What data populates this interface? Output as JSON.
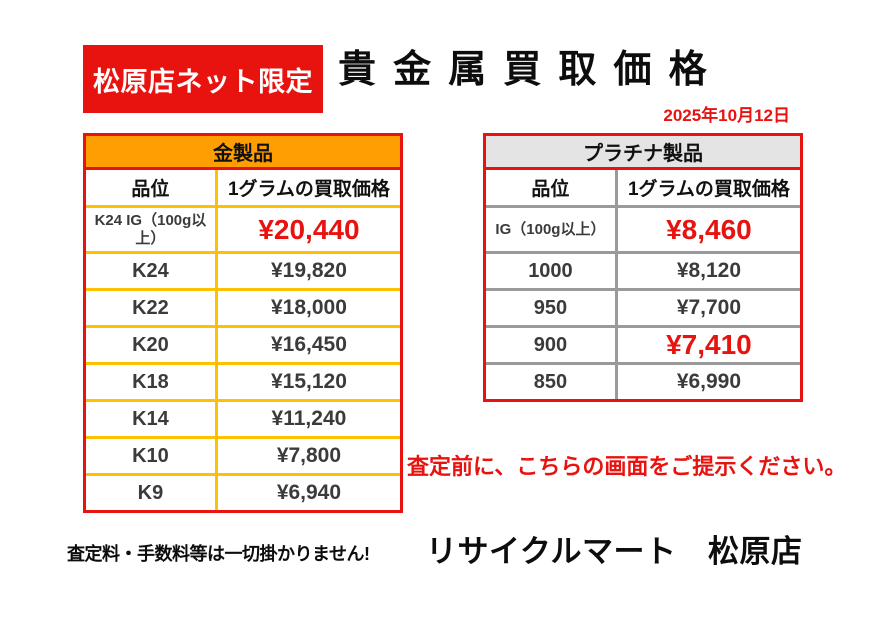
{
  "header": {
    "badge": "松原店ネット限定",
    "title": "貴金属買取価格",
    "date": "2025年10月12日"
  },
  "gold_table": {
    "title": "金製品",
    "columns": [
      "品位",
      "1グラムの買取価格"
    ],
    "rows": [
      {
        "grade": "K24 IG（100g以上）",
        "price": "¥20,440",
        "highlight": true
      },
      {
        "grade": "K24",
        "price": "¥19,820",
        "highlight": false
      },
      {
        "grade": "K22",
        "price": "¥18,000",
        "highlight": false
      },
      {
        "grade": "K20",
        "price": "¥16,450",
        "highlight": false
      },
      {
        "grade": "K18",
        "price": "¥15,120",
        "highlight": false
      },
      {
        "grade": "K14",
        "price": "¥11,240",
        "highlight": false
      },
      {
        "grade": "K10",
        "price": "¥7,800",
        "highlight": false
      },
      {
        "grade": "K9",
        "price": "¥6,940",
        "highlight": false
      }
    ]
  },
  "platinum_table": {
    "title": "プラチナ製品",
    "columns": [
      "品位",
      "1グラムの買取価格"
    ],
    "rows": [
      {
        "grade": "IG（100g以上）",
        "price": "¥8,460",
        "highlight": true
      },
      {
        "grade": "1000",
        "price": "¥8,120",
        "highlight": false
      },
      {
        "grade": "950",
        "price": "¥7,700",
        "highlight": false
      },
      {
        "grade": "900",
        "price": "¥7,410",
        "highlight": true
      },
      {
        "grade": "850",
        "price": "¥6,990",
        "highlight": false
      }
    ]
  },
  "footer": {
    "notice": "査定前に、こちらの画面をご提示ください。",
    "disclaimer": "査定料・手数料等は一切掛かりません!",
    "store_name": "リサイクルマート　松原店"
  },
  "colors": {
    "red": "#e8120f",
    "orange": "#ff9e00",
    "gold_line": "#ffc000",
    "platinum_header_bg": "#e4e4e4",
    "platinum_line": "#9a9a9a",
    "text_dark": "#3b3b3b"
  }
}
